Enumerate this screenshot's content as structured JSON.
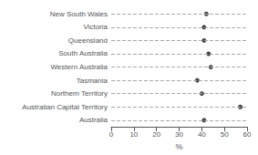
{
  "chart_data": {
    "type": "scatter",
    "orientation": "horizontal",
    "categories": [
      "New South Wales",
      "Victoria",
      "Queensland",
      "South Australia",
      "Western Australia",
      "Tasmania",
      "Northern Territory",
      "Australian Capital Territory",
      "Australia"
    ],
    "values": [
      42,
      41,
      41,
      43,
      44,
      38,
      40,
      57,
      41
    ],
    "color": "#1a1a1a",
    "xlabel": "%",
    "xlim": [
      0,
      60
    ],
    "xticks": [
      0,
      10,
      20,
      30,
      40,
      50,
      60
    ],
    "grid": true
  }
}
